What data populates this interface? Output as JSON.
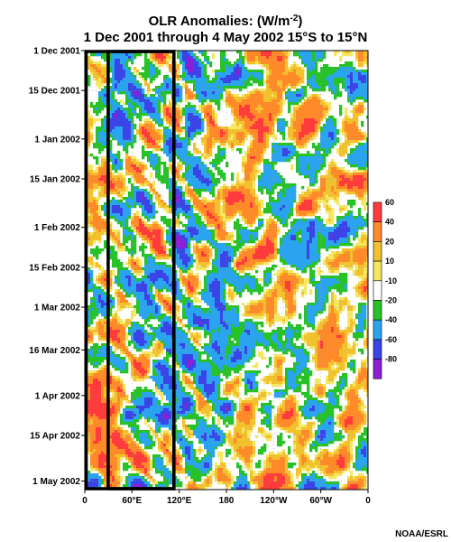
{
  "credit": "NOAA/ESRL",
  "chart_data": {
    "type": "heatmap",
    "title_line1": "OLR Anomalies: (W/m",
    "title_unit_exp": "-2",
    "title_line1_end": ")",
    "title_line2": "1 Dec 2001 through 4 May 2002 15°S to 15°N",
    "x_ticks": [
      "0",
      "60°E",
      "120°E",
      "180",
      "120°W",
      "60°W",
      "0"
    ],
    "x_tick_lon": [
      0,
      60,
      120,
      180,
      240,
      300,
      360
    ],
    "x_range_lon": [
      0,
      360
    ],
    "y_ticks": [
      "1 Dec 2001",
      "15 Dec 2001",
      "1 Jan 2002",
      "15 Jan 2002",
      "1 Feb 2002",
      "15 Feb 2002",
      "1 Mar 2002",
      "16 Mar 2002",
      "1 Apr 2002",
      "15 Apr 2002",
      "1 May 2002"
    ],
    "y_tick_dates": [
      "2001-12-01",
      "2001-12-15",
      "2002-01-01",
      "2002-01-15",
      "2002-02-01",
      "2002-02-15",
      "2002-03-01",
      "2002-03-16",
      "2002-04-01",
      "2002-04-15",
      "2002-05-01"
    ],
    "y_range": [
      "2001-12-01",
      "2002-05-04"
    ],
    "y_reversed": true,
    "colorbar": {
      "levels": [
        "60",
        "40",
        "20",
        "10",
        "-10",
        "-20",
        "-40",
        "-60",
        "-80"
      ],
      "colors": [
        "#ff3b3b",
        "#ff8a2a",
        "#f2c12e",
        "#f5e663",
        "#ffffff",
        "#27c227",
        "#2aa4ef",
        "#3b44e6",
        "#8b1fd6"
      ]
    },
    "highlight_boxes_lon": [
      [
        0,
        115
      ],
      [
        28,
        115
      ]
    ],
    "grid": "dotted"
  }
}
